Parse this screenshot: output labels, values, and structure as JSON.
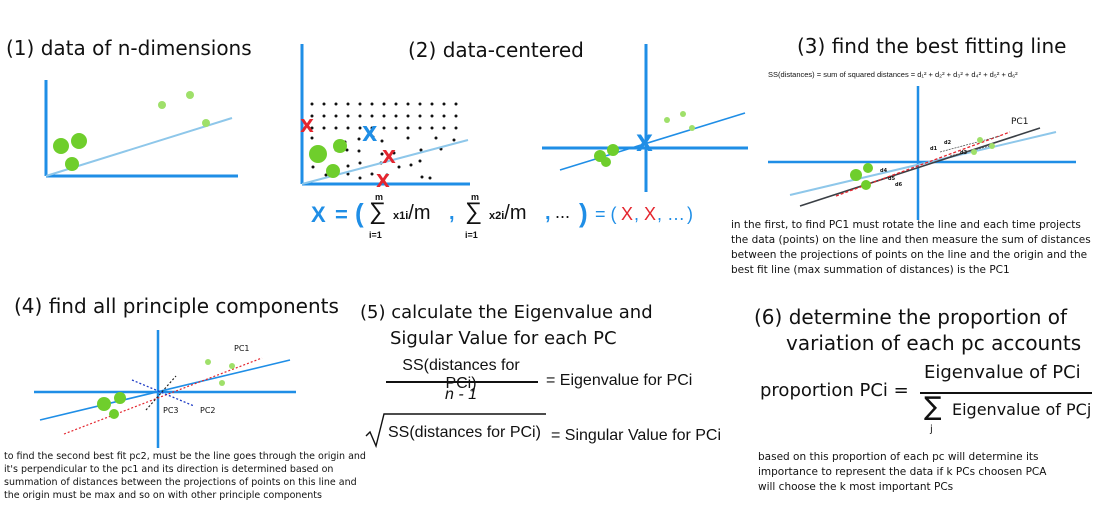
{
  "panel1": {
    "heading": "(1) data of n-dimensions"
  },
  "panel2": {
    "heading": "(2) data-centered",
    "mean_x_symbol": "X",
    "formula": {
      "lhs": "X",
      "equals": "=",
      "open": "(",
      "sum_top": "m",
      "sum_bottom": "i=1",
      "term1": "x1i/m",
      "comma": ",",
      "term2": "x2i/m",
      "ellipsis": "...",
      "close": ")",
      "result_equals": "= (",
      "result_x1": "X",
      "result_x2": "X",
      "result_ellipsis": "…",
      "result_close": ")"
    }
  },
  "panel3": {
    "heading": "(3) find the best fitting line",
    "ss_formula": "SS(distances) = sum of squared distances = d₁² + d₂² + d₃² + d₄² + d₅² + d₆²",
    "pc1_label": "PC1",
    "distance_labels": [
      "d1",
      "d2",
      "d3",
      "d4",
      "d5",
      "d6"
    ],
    "description": "in the first, to find PC1 must rotate the line and each time projects the data (points) on the line and then measure the sum of distances between the projections of points on the line and the origin and the best fit line (max summation of distances) is the PC1"
  },
  "panel4": {
    "heading": "(4) find all principle components",
    "pc1_label": "PC1",
    "pc2_label": "PC2",
    "pc3_label": "PC3",
    "description": "to find the second best fit pc2, must be the line goes through the origin and it's perpendicular to the pc1 and its direction is determined based on summation of distances between the projections of points on this line and the origin must be max and so on with other principle components"
  },
  "panel5": {
    "heading_line1": "(5) calculate the Eigenvalue and",
    "heading_line2": "Sigular Value for each PC",
    "frac_numerator": "SS(distances for PCi)",
    "frac_denominator": "n - 1",
    "eigen_rhs": "= Eigenvalue for PCi",
    "sqrt_content": "SS(distances for PCi)",
    "singular_rhs": "= Singular Value for PCi"
  },
  "panel6": {
    "heading_line1": "(6) determine the proportion of",
    "heading_line2": "variation of each pc accounts",
    "lhs": "proportion PCi =",
    "numerator": "Eigenvalue of PCi",
    "sum_symbol": "∑",
    "sum_index": "j",
    "denominator": "Eigenvalue of PCj",
    "description": "based on this proportion of each pc will determine its importance to represent the data if k PCs choosen PCA will choose the k most important PCs"
  },
  "colors": {
    "axis": "#1f8ee6",
    "line_light": "#8ec7ea",
    "red": "#e4262f",
    "green": "#7fd23a",
    "dark_line": "#3a3f45"
  }
}
